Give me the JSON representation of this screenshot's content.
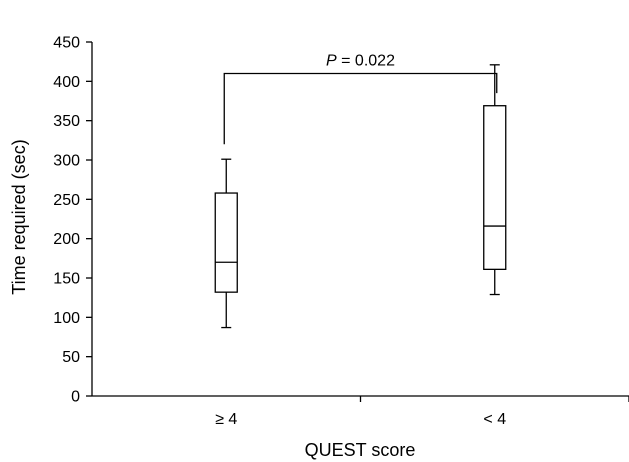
{
  "chart_data": {
    "type": "box",
    "title": "",
    "xlabel": "QUEST score",
    "ylabel": "Time required (sec)",
    "ylim": [
      0,
      450
    ],
    "yticks": [
      0,
      50,
      100,
      150,
      200,
      250,
      300,
      350,
      400,
      450
    ],
    "ytick_labels": [
      "0",
      "50",
      "100",
      "150",
      "200",
      "250",
      "300",
      "350",
      "400",
      "450"
    ],
    "categories": [
      "≥ 4",
      "< 4"
    ],
    "boxes": [
      {
        "category": "≥ 4",
        "min": 87,
        "q1": 132,
        "median": 170,
        "q3": 258,
        "max": 301
      },
      {
        "category": "< 4",
        "min": 129,
        "q1": 161,
        "median": 216,
        "q3": 369,
        "max": 421
      }
    ],
    "annotation": {
      "p_letter": "P",
      "p_text": " = 0.022",
      "bracket_start_y": 320,
      "bracket_top_y": 410,
      "bracket_end_y": 385
    },
    "grid": false,
    "legend": "none"
  }
}
